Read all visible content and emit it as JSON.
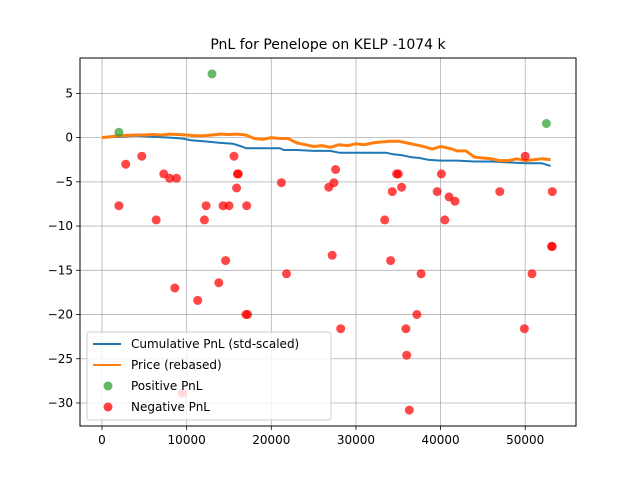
{
  "chart_data": {
    "type": "line",
    "title": "PnL for Penelope on KELP -1074 k",
    "xlabel": "",
    "ylabel": "",
    "xlim": [
      -2600,
      56000
    ],
    "ylim": [
      -32.6,
      9.0
    ],
    "xticks": [
      0,
      10000,
      20000,
      30000,
      40000,
      50000
    ],
    "xtick_labels": [
      "0",
      "10000",
      "20000",
      "30000",
      "40000",
      "50000"
    ],
    "yticks": [
      5,
      0,
      -5,
      -10,
      -15,
      -20,
      -25,
      -30
    ],
    "ytick_labels": [
      "5",
      "0",
      "−5",
      "−10",
      "−15",
      "−20",
      "−25",
      "−30"
    ],
    "grid": true,
    "legend_position": "lower-left",
    "colors": {
      "cumulative": "#1f77b4",
      "price": "#ff7f0e",
      "positive": "#2ca02c",
      "negative": "#ff0000"
    },
    "series": [
      {
        "name": "Cumulative PnL (std-scaled)",
        "kind": "line",
        "x": [
          0,
          2000,
          4000,
          6000,
          8000,
          9500,
          10500,
          12000,
          14000,
          15500,
          16500,
          17000,
          19000,
          21000,
          21500,
          23000,
          25000,
          27000,
          28000,
          30000,
          32000,
          33500,
          34500,
          35500,
          36500,
          37500,
          38500,
          40000,
          42000,
          44000,
          46000,
          48000,
          50000,
          51000,
          52000,
          53000
        ],
        "values": [
          0.0,
          0.1,
          0.2,
          0.1,
          0.0,
          -0.1,
          -0.3,
          -0.4,
          -0.6,
          -0.7,
          -1.0,
          -1.2,
          -1.2,
          -1.2,
          -1.4,
          -1.4,
          -1.5,
          -1.5,
          -1.7,
          -1.7,
          -1.7,
          -1.7,
          -1.9,
          -2.0,
          -2.2,
          -2.3,
          -2.5,
          -2.6,
          -2.6,
          -2.7,
          -2.7,
          -2.8,
          -2.9,
          -2.9,
          -2.9,
          -3.2
        ]
      },
      {
        "name": "Price (rebased)",
        "kind": "line",
        "x": [
          0,
          1000,
          2000,
          3000,
          4000,
          5000,
          6000,
          7000,
          8000,
          9000,
          10000,
          11000,
          12000,
          13000,
          14000,
          15000,
          16000,
          17000,
          18000,
          19000,
          20000,
          21000,
          22000,
          23000,
          24000,
          25000,
          26000,
          27000,
          28000,
          29000,
          30000,
          31000,
          32000,
          33000,
          34000,
          35000,
          36000,
          37000,
          38000,
          39000,
          40000,
          41000,
          42000,
          43000,
          44000,
          45000,
          46000,
          47000,
          48000,
          49000,
          50000,
          51000,
          52000,
          53000
        ],
        "values": [
          0.0,
          0.1,
          0.2,
          0.25,
          0.3,
          0.3,
          0.35,
          0.3,
          0.4,
          0.35,
          0.3,
          0.2,
          0.2,
          0.3,
          0.4,
          0.35,
          0.4,
          0.3,
          -0.1,
          -0.2,
          0.0,
          -0.1,
          -0.1,
          -0.6,
          -0.8,
          -1.0,
          -0.9,
          -1.1,
          -0.8,
          -0.9,
          -0.7,
          -0.8,
          -0.6,
          -0.5,
          -0.4,
          -0.4,
          -0.6,
          -0.8,
          -1.0,
          -1.3,
          -1.0,
          -1.2,
          -1.5,
          -1.5,
          -2.2,
          -2.3,
          -2.4,
          -2.6,
          -2.6,
          -2.4,
          -2.6,
          -2.5,
          -2.4,
          -2.5
        ]
      },
      {
        "name": "Positive PnL",
        "kind": "scatter",
        "x": [
          2000,
          13000,
          52500
        ],
        "values": [
          0.6,
          7.2,
          1.6
        ]
      },
      {
        "name": "Negative PnL",
        "kind": "scatter",
        "x": [
          2000,
          2800,
          4700,
          6400,
          7300,
          8000,
          8800,
          8600,
          9500,
          11300,
          12100,
          12300,
          13800,
          14300,
          14600,
          15000,
          15600,
          15900,
          16000,
          16100,
          17100,
          17200,
          17000,
          21200,
          21800,
          26800,
          27200,
          27400,
          27600,
          28200,
          33400,
          34100,
          34300,
          34800,
          35000,
          35400,
          35900,
          36000,
          36300,
          37200,
          37700,
          39600,
          40100,
          40500,
          41000,
          41700,
          47000,
          49900,
          50000,
          50800,
          53100,
          53200,
          53200
        ],
        "values": [
          -7.7,
          -3.0,
          -2.1,
          -9.3,
          -4.1,
          -4.6,
          -4.6,
          -17.0,
          -28.9,
          -18.4,
          -9.3,
          -7.7,
          -16.4,
          -7.7,
          -13.9,
          -7.7,
          -2.1,
          -5.7,
          -4.1,
          -4.1,
          -7.7,
          -20.0,
          -20.0,
          -5.1,
          -15.4,
          -5.6,
          -13.3,
          -5.1,
          -3.6,
          -21.6,
          -9.3,
          -13.9,
          -6.1,
          -4.1,
          -4.1,
          -5.6,
          -21.6,
          -24.6,
          -30.8,
          -20.0,
          -15.4,
          -6.1,
          -4.1,
          -9.3,
          -6.7,
          -7.2,
          -6.1,
          -21.6,
          -2.1,
          -15.4,
          -12.3,
          -12.3,
          -6.1
        ]
      }
    ]
  }
}
